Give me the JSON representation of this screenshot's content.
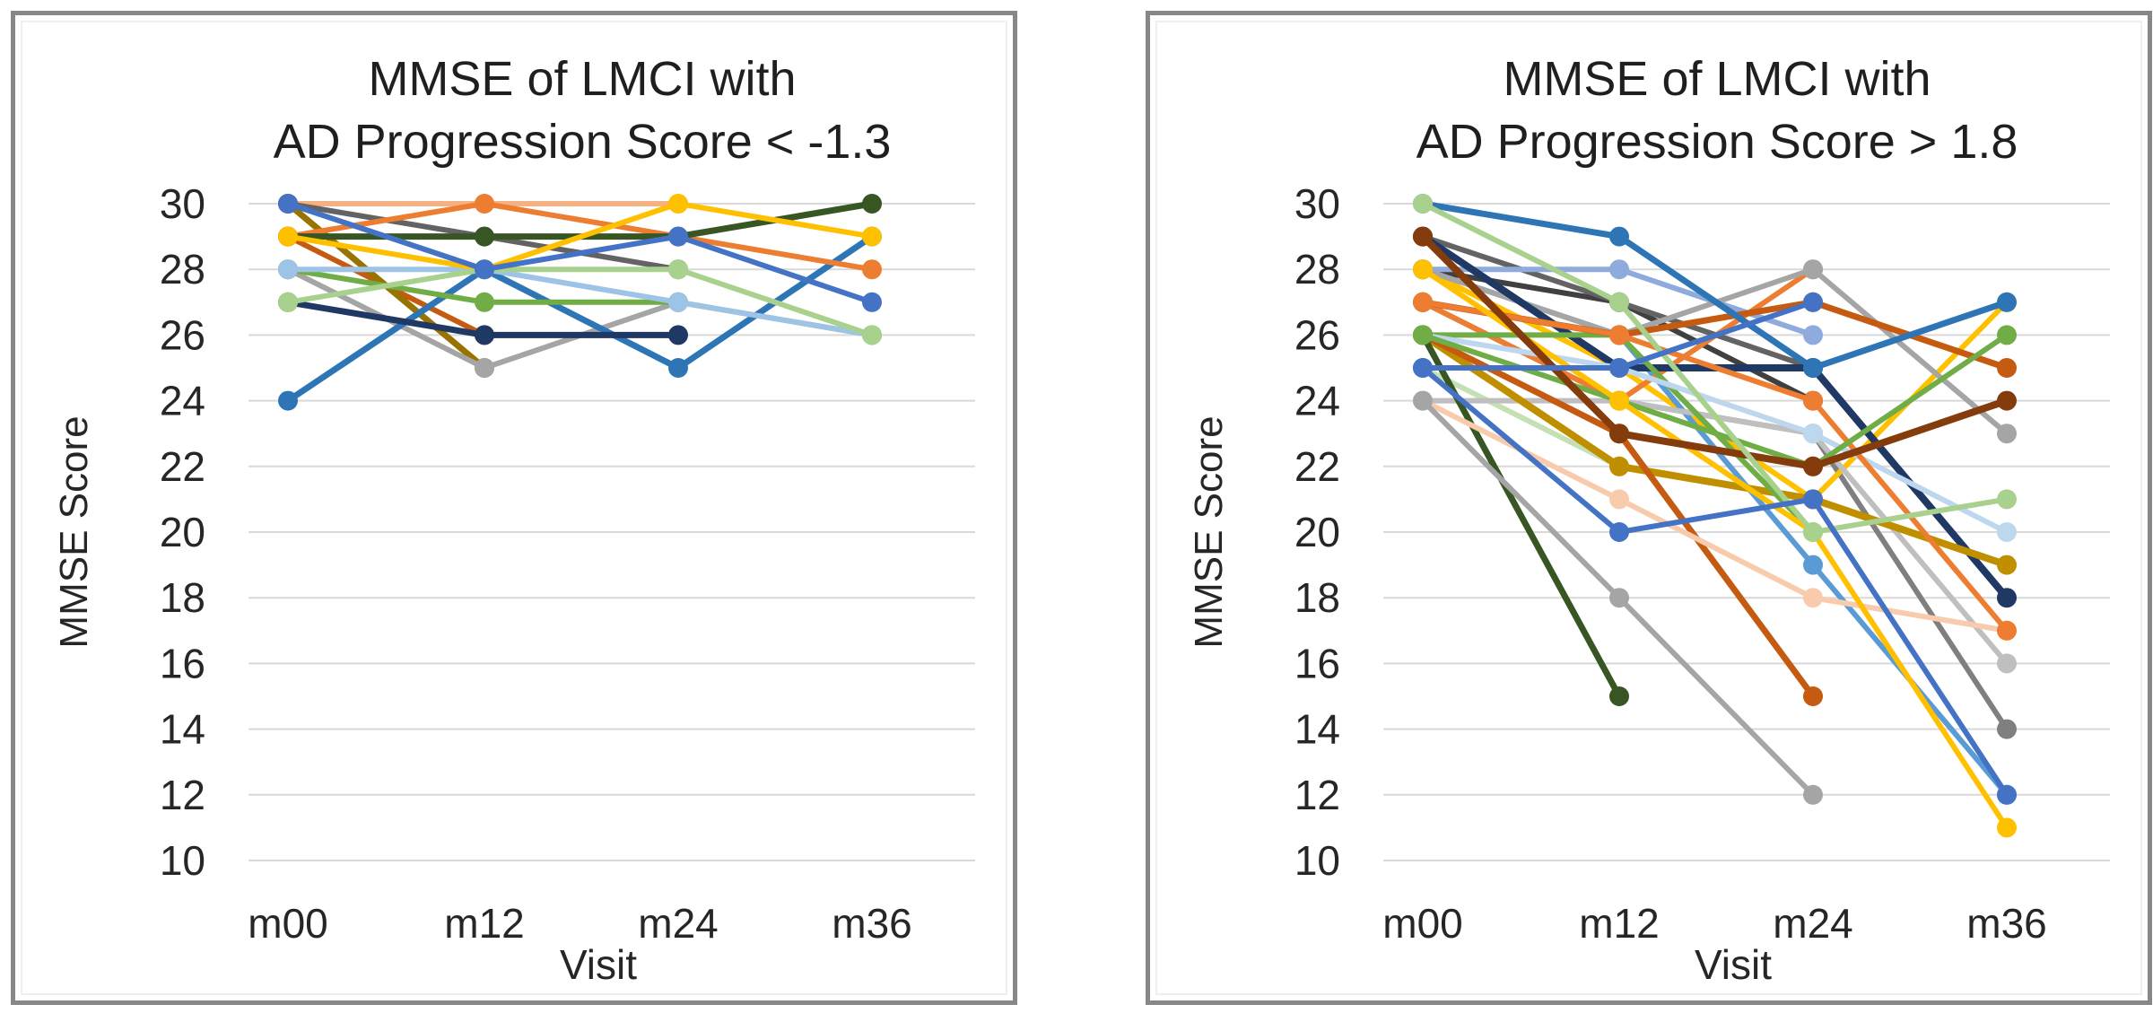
{
  "page": {
    "background": "#FFFFFF"
  },
  "style": {
    "panel_border_color": "#878787",
    "inner_frame_color": "#EFEFEF",
    "gridline_color": "#D9D9D9",
    "text_color": "#262626"
  },
  "charts": [
    {
      "title_line1": "MMSE of LMCI with",
      "title_line2": "AD Progression Score < -1.3"
    },
    {
      "title_line1": "MMSE of LMCI with",
      "title_line2": "AD Progression Score > 1.8"
    }
  ],
  "chart_data": [
    {
      "type": "line",
      "title": "MMSE of LMCI with AD Progression Score < -1.3",
      "categories": [
        "m00",
        "m12",
        "m24",
        "m36"
      ],
      "xlabel": "Visit",
      "ylabel": "MMSE Score",
      "ylim": [
        10,
        30
      ],
      "yticks": [
        30,
        28,
        26,
        24,
        22,
        20,
        18,
        16,
        14,
        12,
        10
      ],
      "grid": "horizontal",
      "legend": "none",
      "markers": true,
      "series": [
        {
          "id": "patient-01",
          "color": "#F4B183",
          "width": 6,
          "values": [
            30,
            30,
            30,
            null
          ]
        },
        {
          "id": "patient-02",
          "color": "#C55A11",
          "width": 6,
          "values": [
            29,
            26,
            null,
            null
          ]
        },
        {
          "id": "patient-03",
          "color": "#997300",
          "width": 7,
          "values": [
            30,
            25,
            null,
            null
          ]
        },
        {
          "id": "patient-04",
          "color": "#A5A5A5",
          "width": 6,
          "values": [
            28,
            25,
            27,
            null
          ]
        },
        {
          "id": "patient-05",
          "color": "#636363",
          "width": 6,
          "values": [
            30,
            29,
            28,
            null
          ]
        },
        {
          "id": "patient-06",
          "color": "#2E75B6",
          "width": 7,
          "values": [
            24,
            28,
            25,
            29
          ]
        },
        {
          "id": "patient-07",
          "color": "#1F3864",
          "width": 7,
          "values": [
            27,
            26,
            26,
            null
          ]
        },
        {
          "id": "patient-08",
          "color": "#ED7D31",
          "width": 6,
          "values": [
            29,
            30,
            null,
            28
          ]
        },
        {
          "id": "patient-09",
          "color": "#70AD47",
          "width": 6,
          "values": [
            28,
            27,
            27,
            26
          ]
        },
        {
          "id": "patient-10",
          "color": "#9DC3E6",
          "width": 6,
          "values": [
            28,
            28,
            27,
            26
          ]
        },
        {
          "id": "patient-11",
          "color": "#375623",
          "width": 7,
          "values": [
            29,
            29,
            29,
            30
          ]
        },
        {
          "id": "patient-12",
          "color": "#FFC000",
          "width": 6,
          "values": [
            29,
            28,
            30,
            29
          ]
        },
        {
          "id": "patient-13",
          "color": "#A9D18E",
          "width": 6,
          "values": [
            27,
            28,
            28,
            26
          ]
        },
        {
          "id": "patient-14",
          "color": "#4472C4",
          "width": 6,
          "values": [
            30,
            28,
            29,
            27
          ]
        }
      ]
    },
    {
      "type": "line",
      "title": "MMSE of LMCI with AD Progression Score > 1.8",
      "categories": [
        "m00",
        "m12",
        "m24",
        "m36"
      ],
      "xlabel": "Visit",
      "ylabel": "MMSE Score",
      "ylim": [
        10,
        30
      ],
      "yticks": [
        30,
        28,
        26,
        24,
        22,
        20,
        18,
        16,
        14,
        12,
        10
      ],
      "grid": "horizontal",
      "legend": "none",
      "markers": true,
      "series": [
        {
          "id": "patient-15",
          "color": "#404040",
          "width": 6,
          "values": [
            28,
            27,
            24,
            null
          ]
        },
        {
          "id": "patient-16",
          "color": "#636363",
          "width": 6,
          "values": [
            29,
            27,
            25,
            null
          ]
        },
        {
          "id": "patient-17",
          "color": "#7F7F7F",
          "width": 6,
          "values": [
            27,
            24,
            23,
            14
          ]
        },
        {
          "id": "patient-18",
          "color": "#FFC000",
          "width": 6,
          "values": [
            28,
            25,
            21,
            27
          ]
        },
        {
          "id": "patient-19",
          "color": "#5B9BD5",
          "width": 6,
          "values": [
            28,
            26,
            19,
            12
          ]
        },
        {
          "id": "patient-20",
          "color": "#ED7D31",
          "width": 6,
          "values": [
            27,
            24,
            28,
            null
          ]
        },
        {
          "id": "patient-21",
          "color": "#8FAADC",
          "width": 6,
          "values": [
            28,
            28,
            26,
            null
          ]
        },
        {
          "id": "patient-22",
          "color": "#C5E0B4",
          "width": 6,
          "values": [
            25,
            22,
            null,
            null
          ]
        },
        {
          "id": "patient-23",
          "color": "#BFBFBF",
          "width": 6,
          "values": [
            24,
            24,
            23,
            16
          ]
        },
        {
          "id": "patient-24",
          "color": "#A5A5A5",
          "width": 6,
          "values": [
            28,
            26,
            28,
            23
          ]
        },
        {
          "id": "patient-25",
          "color": "#1F3864",
          "width": 8,
          "values": [
            29,
            25,
            25,
            18
          ]
        },
        {
          "id": "patient-26",
          "color": "#BF8F00",
          "width": 8,
          "values": [
            26,
            22,
            21,
            19
          ]
        },
        {
          "id": "patient-27",
          "color": "#70AD47",
          "width": 6,
          "values": [
            26,
            26,
            20,
            null
          ]
        },
        {
          "id": "patient-28",
          "color": "#BDD7EE",
          "width": 6,
          "values": [
            26,
            25,
            23,
            20
          ]
        },
        {
          "id": "patient-29",
          "color": "#C55A11",
          "width": 7,
          "values": [
            27,
            26,
            27,
            25
          ]
        },
        {
          "id": "patient-30",
          "color": "#C55A11",
          "width": 7,
          "values": [
            26,
            23,
            15,
            null
          ]
        },
        {
          "id": "patient-31",
          "color": "#375623",
          "width": 7,
          "values": [
            26,
            15,
            null,
            null
          ]
        },
        {
          "id": "patient-32",
          "color": "#F8CBAD",
          "width": 6,
          "values": [
            24,
            21,
            18,
            17
          ]
        },
        {
          "id": "patient-33",
          "color": "#A5A5A5",
          "width": 6,
          "values": [
            24,
            18,
            12,
            null
          ]
        },
        {
          "id": "patient-34",
          "color": "#ED7D31",
          "width": 6,
          "values": [
            27,
            26,
            24,
            17
          ]
        },
        {
          "id": "patient-35",
          "color": "#70AD47",
          "width": 6,
          "values": [
            26,
            24,
            22,
            26
          ]
        },
        {
          "id": "patient-36",
          "color": "#FFC000",
          "width": 6,
          "values": [
            28,
            24,
            20,
            11
          ]
        },
        {
          "id": "patient-37",
          "color": "#843C0C",
          "width": 8,
          "values": [
            29,
            23,
            22,
            24
          ]
        },
        {
          "id": "patient-38",
          "color": "#2E75B6",
          "width": 7,
          "values": [
            30,
            29,
            25,
            27
          ]
        },
        {
          "id": "patient-39",
          "color": "#A9D18E",
          "width": 6,
          "values": [
            30,
            27,
            20,
            21
          ]
        },
        {
          "id": "patient-40",
          "color": "#4472C4",
          "width": 6,
          "values": [
            25,
            25,
            27,
            null
          ]
        },
        {
          "id": "patient-41",
          "color": "#4472C4",
          "width": 6,
          "values": [
            25,
            20,
            21,
            12
          ]
        }
      ]
    }
  ]
}
